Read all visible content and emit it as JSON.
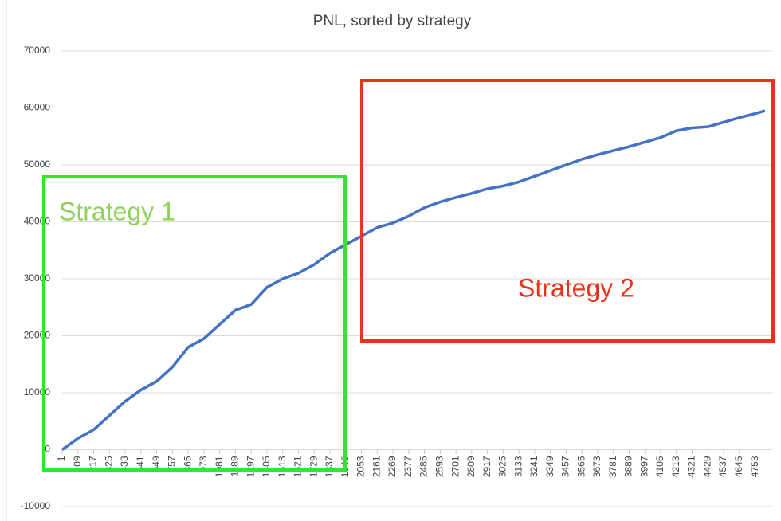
{
  "chart_data": {
    "type": "line",
    "title": "PNL, sorted by strategy",
    "x": [
      1,
      109,
      217,
      325,
      433,
      541,
      649,
      757,
      865,
      973,
      1081,
      1189,
      1297,
      1405,
      1513,
      1621,
      1729,
      1837,
      1945,
      2053,
      2161,
      2269,
      2377,
      2485,
      2593,
      2701,
      2809,
      2917,
      3025,
      3133,
      3241,
      3349,
      3457,
      3565,
      3673,
      3781,
      3889,
      3997,
      4105,
      4213,
      4321,
      4429,
      4537,
      4645,
      4753,
      4820
    ],
    "series": [
      {
        "name": "PNL",
        "color": "#4472c4",
        "values": [
          0,
          2000,
          3500,
          6000,
          8500,
          10500,
          12000,
          14500,
          18000,
          19500,
          22000,
          24500,
          25500,
          28500,
          30000,
          31000,
          32500,
          34500,
          36000,
          37500,
          39000,
          39800,
          41000,
          42500,
          43500,
          44300,
          45000,
          45800,
          46300,
          47000,
          48000,
          49000,
          50000,
          51000,
          51800,
          52500,
          53200,
          54000,
          54800,
          56000,
          56500,
          56700,
          57500,
          58300,
          59000,
          59500
        ]
      }
    ],
    "xlim": [
      1,
      4870
    ],
    "xticks": [
      1,
      109,
      217,
      325,
      433,
      541,
      649,
      757,
      865,
      973,
      1081,
      1189,
      1297,
      1405,
      1513,
      1621,
      1729,
      1837,
      1945,
      2053,
      2161,
      2269,
      2377,
      2485,
      2593,
      2701,
      2809,
      2917,
      3025,
      3133,
      3241,
      3349,
      3457,
      3565,
      3673,
      3781,
      3889,
      3997,
      4105,
      4213,
      4321,
      4429,
      4537,
      4645,
      4753
    ],
    "ylim": [
      -10000,
      70000
    ],
    "yticks": [
      -10000,
      0,
      10000,
      20000,
      30000,
      40000,
      50000,
      60000,
      70000
    ],
    "grid": true,
    "annotations": [
      {
        "text": "Strategy 1",
        "color": "#8fd25a"
      },
      {
        "text": "Strategy 2",
        "color": "#e8341c"
      }
    ]
  }
}
